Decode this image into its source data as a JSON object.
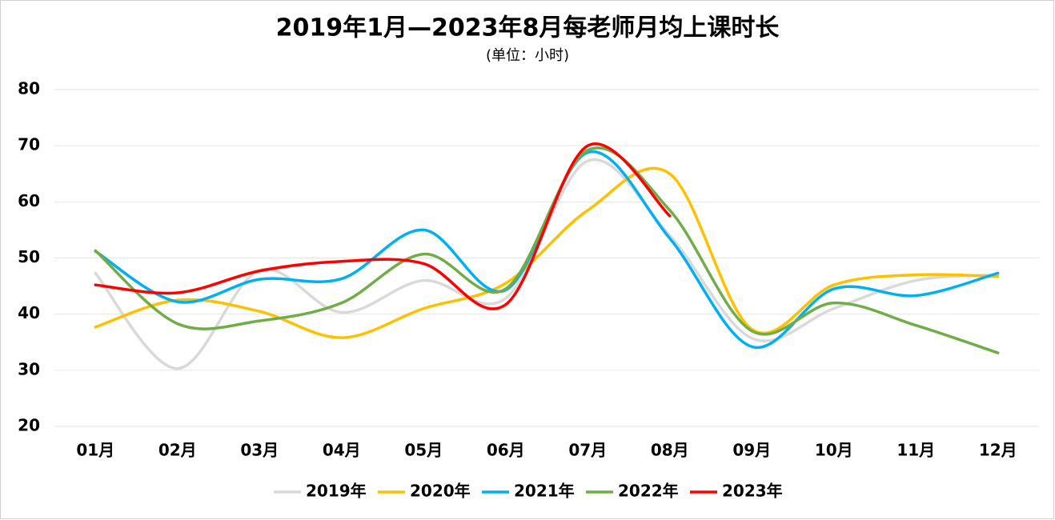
{
  "chart_data": {
    "type": "line",
    "title": "2019年1月—2023年8月每老师月均上课时长",
    "subtitle": "(单位：小时)",
    "categories": [
      "01月",
      "02月",
      "03月",
      "04月",
      "05月",
      "06月",
      "07月",
      "08月",
      "09月",
      "10月",
      "11月",
      "12月"
    ],
    "series": [
      {
        "name": "2019年",
        "color": "#d9d9d9",
        "values": [
          47.3,
          30.3,
          47.8,
          40.3,
          46,
          42.8,
          67.3,
          54,
          35.7,
          41,
          46,
          47
        ]
      },
      {
        "name": "2020年",
        "color": "#ffc000",
        "values": [
          37.7,
          42.5,
          40.5,
          35.8,
          41,
          45.5,
          58.5,
          65,
          37.3,
          45.2,
          47,
          46.7
        ]
      },
      {
        "name": "2021年",
        "color": "#00b0f0",
        "values": [
          51.2,
          42.2,
          46.2,
          46.3,
          55,
          44.3,
          68.8,
          53.5,
          34.2,
          44.5,
          43.3,
          47.3
        ]
      },
      {
        "name": "2022年",
        "color": "#70ad47",
        "values": [
          51.3,
          38.3,
          38.8,
          42,
          50.7,
          44.5,
          69.2,
          58.5,
          37,
          42,
          38,
          33.1
        ]
      },
      {
        "name": "2023年",
        "color": "#ff0000",
        "values": [
          45.2,
          43.8,
          47.7,
          49.4,
          49,
          41.7,
          70,
          57.5,
          null,
          null,
          null,
          null
        ]
      }
    ],
    "ylim": [
      20,
      80
    ],
    "yticks": [
      20,
      30,
      40,
      50,
      60,
      70,
      80
    ],
    "grid": true,
    "legend": "bottom"
  }
}
